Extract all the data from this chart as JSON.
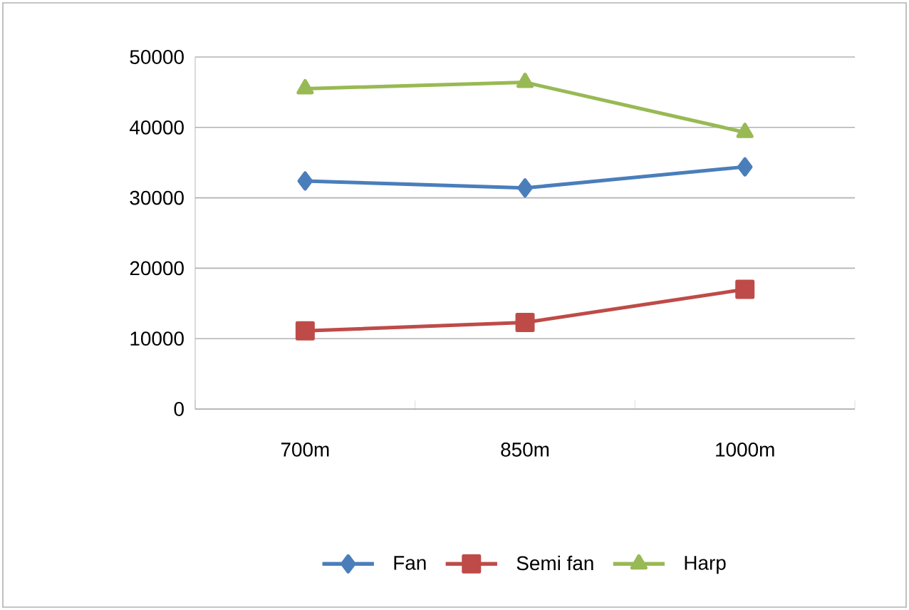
{
  "chart_data": {
    "type": "line",
    "categories": [
      "700m",
      "850m",
      "1000m"
    ],
    "series": [
      {
        "name": "Fan",
        "color": "#4a7ebb",
        "marker": "diamond",
        "values": [
          32400,
          31400,
          34400
        ]
      },
      {
        "name": "Semi fan",
        "color": "#be4b48",
        "marker": "square",
        "values": [
          11100,
          12300,
          17000
        ]
      },
      {
        "name": "Harp",
        "color": "#98b954",
        "marker": "triangle",
        "values": [
          45500,
          46400,
          39300
        ]
      }
    ],
    "ylim": [
      0,
      50000
    ],
    "yticks": [
      0,
      10000,
      20000,
      30000,
      40000,
      50000
    ],
    "grid": "y",
    "legend": "bottom",
    "line_style": "solid"
  }
}
